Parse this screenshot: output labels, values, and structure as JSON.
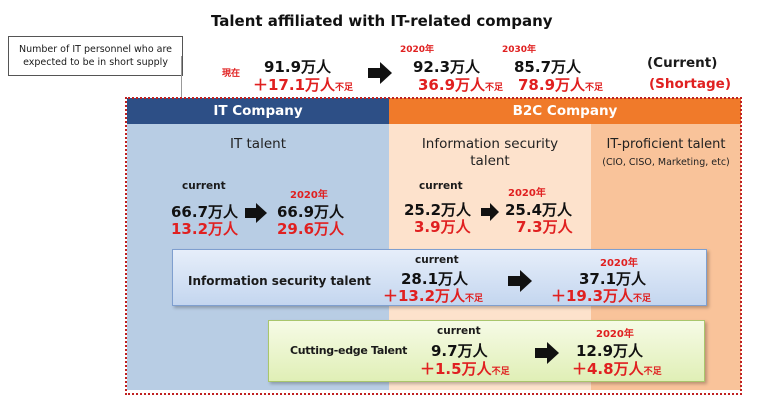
{
  "title": "Talent affiliated with IT-related company",
  "note": "Number of IT personnel who are expected to be in short supply",
  "top_row": {
    "current_label": "現在",
    "current_total": "91.9万人",
    "current_shortage": "＋17.1万人",
    "shortage_suffix": "不足",
    "y2020_label": "2020年",
    "y2020_total": "92.3万人",
    "y2020_shortage": "36.9万人",
    "y2030_label": "2030年",
    "y2030_total": "85.7万人",
    "y2030_shortage": "78.9万人",
    "legend_current": "(Current)",
    "legend_shortage": "(Shortage)"
  },
  "headers": {
    "it_company": "IT Company",
    "b2c_company": "B2C Company"
  },
  "it_talent": {
    "title": "IT talent",
    "current_label": "current",
    "current_total": "66.7万人",
    "current_shortage": "13.2万人",
    "y2020_label": "2020年",
    "y2020_total": "66.9万人",
    "y2020_shortage": "29.6万人"
  },
  "info_sec_b2c": {
    "title_line1": "Information security",
    "title_line2": "talent",
    "current_label": "current",
    "current_total": "25.2万人",
    "current_shortage": "3.9万人",
    "y2020_label": "2020年",
    "y2020_total": "25.4万人",
    "y2020_shortage": "7.3万人"
  },
  "it_proficient": {
    "title": "IT-proficient talent",
    "subtitle": "(CIO, CISO, Marketing, etc)"
  },
  "info_sec_total": {
    "label": "Information security talent",
    "current_label": "current",
    "current_total": "28.1万人",
    "current_shortage": "＋13.2万人",
    "shortage_suffix": "不足",
    "y2020_label": "2020年",
    "y2020_total": "37.1万人",
    "y2020_shortage": "＋19.3万人"
  },
  "cutting_edge": {
    "label": "Cutting-edge Talent",
    "current_label": "current",
    "current_total": "9.7万人",
    "current_shortage": "＋1.5万人",
    "shortage_suffix": "不足",
    "y2020_label": "2020年",
    "y2020_total": "12.9万人",
    "y2020_shortage": "＋4.8万人"
  },
  "colors": {
    "it_header": "#2d4f86",
    "b2c_header": "#f07a2a",
    "shortage_red": "#e02020"
  }
}
